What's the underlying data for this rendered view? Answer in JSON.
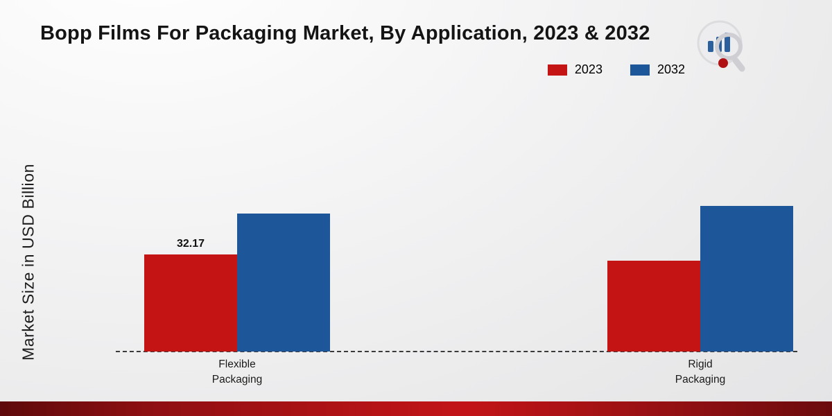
{
  "title": "Bopp Films For Packaging Market, By Application, 2023 & 2032",
  "ylabel": "Market Size in USD Billion",
  "legend": [
    {
      "label": "2023",
      "color": "#c41414"
    },
    {
      "label": "2032",
      "color": "#1d5799"
    }
  ],
  "chart_data": {
    "type": "bar",
    "categories": [
      "Flexible Packaging",
      "Rigid Packaging"
    ],
    "display_categories": [
      "Flexible\nPackaging",
      "Rigid\nPackaging"
    ],
    "series": [
      {
        "name": "2023",
        "color": "#c41414",
        "values": [
          32.17,
          30.2
        ]
      },
      {
        "name": "2032",
        "color": "#1d5799",
        "values": [
          45.9,
          48.4
        ]
      }
    ],
    "value_label": {
      "series": "2023",
      "category_index": 0,
      "text": "32.17"
    },
    "ylim": [
      0,
      55
    ],
    "xlabel": "",
    "grid": "off",
    "baseline": "dashed",
    "legend_position": "top-right"
  },
  "branding": {
    "logo": "market-research-logo",
    "footer_color": "#9c1013"
  }
}
